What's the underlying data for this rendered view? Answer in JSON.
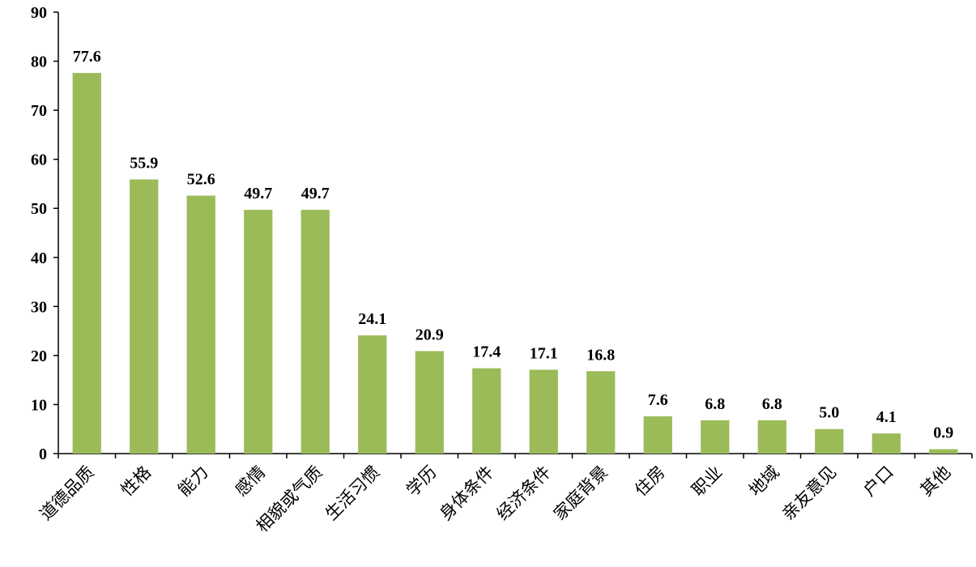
{
  "chart_data": {
    "type": "bar",
    "categories": [
      "道德品质",
      "性格",
      "能力",
      "感情",
      "相貌或气质",
      "生活习惯",
      "学历",
      "身体条件",
      "经济条件",
      "家庭背景",
      "住房",
      "职业",
      "地域",
      "亲友意见",
      "户口",
      "其他"
    ],
    "values": [
      77.6,
      55.9,
      52.6,
      49.7,
      49.7,
      24.1,
      20.9,
      17.4,
      17.1,
      16.8,
      7.6,
      6.8,
      6.8,
      5.0,
      4.1,
      0.9
    ],
    "value_labels": [
      "77.6",
      "55.9",
      "52.6",
      "49.7",
      "49.7",
      "24.1",
      "20.9",
      "17.4",
      "17.1",
      "16.8",
      "7.6",
      "6.8",
      "6.8",
      "5.0",
      "4.1",
      "0.9"
    ],
    "yticks": [
      0,
      10,
      20,
      30,
      40,
      50,
      60,
      70,
      80,
      90
    ],
    "ylim": [
      0,
      90
    ],
    "bar_color": "#9bbb59",
    "grid": false,
    "legend": "none"
  }
}
